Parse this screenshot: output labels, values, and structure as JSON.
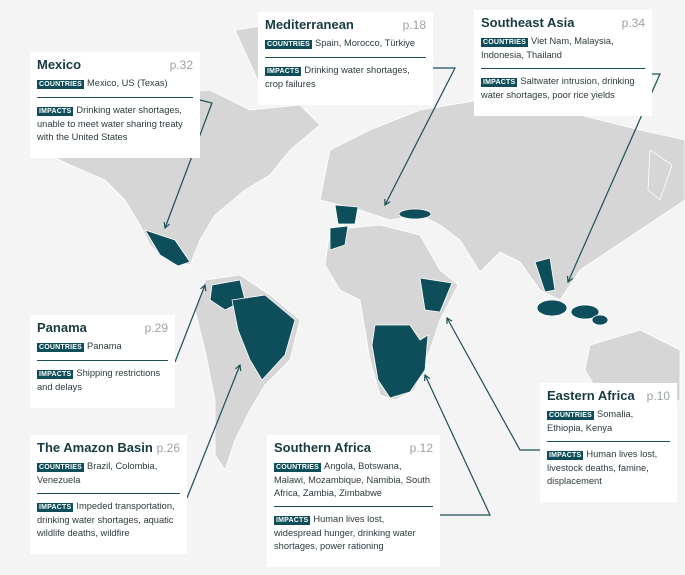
{
  "regions": [
    {
      "title": "Mexico",
      "page": "p.32",
      "countries_label": "COUNTRIES",
      "countries": "Mexico, US (Texas)",
      "impacts_label": "IMPACTS",
      "impacts": "Drinking water shortages, unable to meet water sharing treaty with the United States"
    },
    {
      "title": "Mediterranean",
      "page": "p.18",
      "countries_label": "COUNTRIES",
      "countries": "Spain, Morocco, Türkiye",
      "impacts_label": "IMPACTS",
      "impacts": "Drinking water shortages, crop failures"
    },
    {
      "title": "Southeast Asia",
      "page": "p.34",
      "countries_label": "COUNTRIES",
      "countries": "Viet Nam, Malaysia, Indonesia, Thailand",
      "impacts_label": "IMPACTS",
      "impacts": "Saltwater intrusion, drinking water shortages, poor rice yields"
    },
    {
      "title": "Panama",
      "page": "p.29",
      "countries_label": "COUNTRIES",
      "countries": "Panama",
      "impacts_label": "IMPACTS",
      "impacts": "Shipping restrictions and delays"
    },
    {
      "title": "The Amazon Basin",
      "page": "p.26",
      "countries_label": "COUNTRIES",
      "countries": "Brazil, Colombia, Venezuela",
      "impacts_label": "IMPACTS",
      "impacts": "Impeded transportation, drinking water shortages, aquatic wildlife deaths, wildfire"
    },
    {
      "title": "Southern Africa",
      "page": "p.12",
      "countries_label": "COUNTRIES",
      "countries": "Angola, Botswana, Malawi, Mozambique, Namibia, South Africa, Zambia, Zimbabwe",
      "impacts_label": "IMPACTS",
      "impacts": "Human lives lost, widespread hunger, drinking water shortages, power rationing"
    },
    {
      "title": "Eastern Africa",
      "page": "p.10",
      "countries_label": "COUNTRIES",
      "countries": "Somalia, Ethiopia, Kenya",
      "impacts_label": "IMPACTS",
      "impacts": "Human lives lost, livestock deaths, famine, displacement"
    }
  ]
}
